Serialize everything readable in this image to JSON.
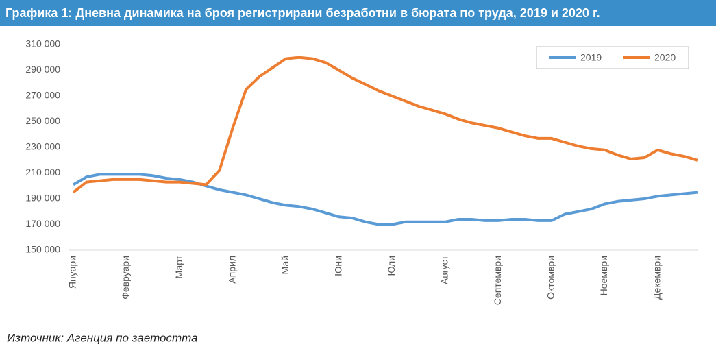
{
  "chart_data": {
    "type": "line",
    "title": "Графика 1: Дневна динамика на броя регистрирани безработни в бюрата по труда, 2019 и 2020 г.",
    "source": "Източник: Агенция по заетостта",
    "categories": [
      "Януари",
      null,
      null,
      null,
      "Февруари",
      null,
      null,
      null,
      "Март",
      null,
      null,
      null,
      "Април",
      null,
      null,
      null,
      "Май",
      null,
      null,
      null,
      "Юни",
      null,
      null,
      null,
      "Юли",
      null,
      null,
      null,
      "Август",
      null,
      null,
      null,
      "Септември",
      null,
      null,
      null,
      "Октомври",
      null,
      null,
      null,
      "Ноември",
      null,
      null,
      null,
      "Декември",
      null,
      null,
      null
    ],
    "series": [
      {
        "name": "2019",
        "color": "#5b9bd5",
        "values": [
          201000,
          207000,
          209000,
          209000,
          209000,
          209000,
          208000,
          206000,
          205000,
          203000,
          200000,
          197000,
          195000,
          193000,
          190000,
          187000,
          185000,
          184000,
          182000,
          179000,
          176000,
          175000,
          172000,
          170000,
          170000,
          172000,
          172000,
          172000,
          172000,
          174000,
          174000,
          173000,
          173000,
          174000,
          174000,
          173000,
          173000,
          178000,
          180000,
          182000,
          186000,
          188000,
          189000,
          190000,
          192000,
          193000,
          194000,
          195000
        ]
      },
      {
        "name": "2020",
        "color": "#ed7d31",
        "values": [
          195000,
          203000,
          204000,
          205000,
          205000,
          205000,
          204000,
          203000,
          203000,
          202000,
          201000,
          212000,
          245000,
          275000,
          285000,
          292000,
          299000,
          300000,
          299000,
          296000,
          290000,
          284000,
          279000,
          274000,
          270000,
          266000,
          262000,
          259000,
          256000,
          252000,
          249000,
          247000,
          245000,
          242000,
          239000,
          237000,
          237000,
          234000,
          231000,
          229000,
          228000,
          224000,
          221000,
          222000,
          228000,
          225000,
          223000,
          220000
        ]
      }
    ],
    "ylim": [
      150000,
      310000
    ],
    "yticks": [
      {
        "value": 150000,
        "label": "150 000"
      },
      {
        "value": 170000,
        "label": "170 000"
      },
      {
        "value": 190000,
        "label": "190 000"
      },
      {
        "value": 210000,
        "label": "210 000"
      },
      {
        "value": 230000,
        "label": "230 000"
      },
      {
        "value": 250000,
        "label": "250 000"
      },
      {
        "value": 270000,
        "label": "270 000"
      },
      {
        "value": 290000,
        "label": "290 000"
      },
      {
        "value": 310000,
        "label": "310 000"
      }
    ],
    "grid": false,
    "legend": "top-right"
  }
}
